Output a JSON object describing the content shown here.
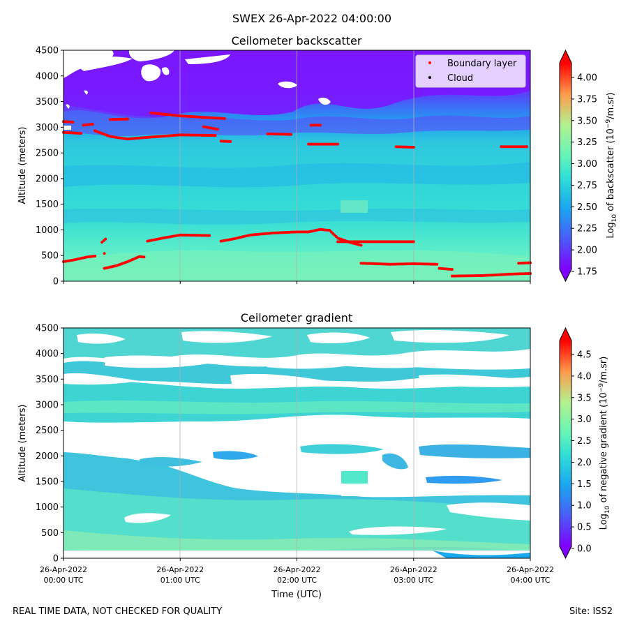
{
  "suptitle": "SWEX 26-Apr-2022 04:00:00",
  "footer_left": "REAL TIME DATA, NOT CHECKED FOR QUALITY",
  "footer_right": "Site: ISS2",
  "xlabel": "Time (UTC)",
  "x_ticks": [
    {
      "date": "26-Apr-2022",
      "time": "00:00 UTC"
    },
    {
      "date": "26-Apr-2022",
      "time": "01:00 UTC"
    },
    {
      "date": "26-Apr-2022",
      "time": "02:00 UTC"
    },
    {
      "date": "26-Apr-2022",
      "time": "03:00 UTC"
    },
    {
      "date": "26-Apr-2022",
      "time": "04:00 UTC"
    }
  ],
  "y_ticks": [
    "0",
    "500",
    "1000",
    "1500",
    "2000",
    "2500",
    "3000",
    "3500",
    "4000",
    "4500"
  ],
  "top": {
    "title": "Ceilometer backscatter",
    "ylabel": "Altitude (meters)",
    "cbar_label": "Log10 of backscatter (10⁻⁹/m.sr)",
    "cbar_ticks": [
      "1.75",
      "2.00",
      "2.25",
      "2.50",
      "2.75",
      "3.00",
      "3.25",
      "3.50",
      "3.75",
      "4.00"
    ],
    "legend": [
      {
        "label": "Boundary layer",
        "color": "#ff0000"
      },
      {
        "label": "Cloud",
        "color": "#000000"
      }
    ]
  },
  "bottom": {
    "title": "Ceilometer gradient",
    "ylabel": "Altitude (meters)",
    "cbar_label": "Log10 of negative gradient (10⁻⁹/m.sr)",
    "cbar_ticks": [
      "0.0",
      "0.5",
      "1.0",
      "1.5",
      "2.0",
      "2.5",
      "3.0",
      "3.5",
      "4.0",
      "4.5"
    ]
  },
  "chart_data": [
    {
      "type": "heatmap",
      "title": "Ceilometer backscatter",
      "xlabel": "Time (UTC)",
      "ylabel": "Altitude (meters)",
      "xlim_hours": [
        0,
        4
      ],
      "ylim": [
        0,
        4500
      ],
      "colorbar_range": [
        1.75,
        4.2
      ],
      "colormap": "rainbow",
      "series": [
        {
          "name": "Boundary layer",
          "type": "scatter",
          "color": "#ff0000",
          "segments": [
            [
              [
                0.0,
                380
              ],
              [
                0.1,
                420
              ],
              [
                0.2,
                470
              ],
              [
                0.27,
                490
              ]
            ],
            [
              [
                0.33,
                760
              ],
              [
                0.36,
                820
              ]
            ],
            [
              [
                0.35,
                540
              ]
            ],
            [
              [
                0.35,
                250
              ],
              [
                0.45,
                300
              ],
              [
                0.55,
                380
              ],
              [
                0.65,
                480
              ],
              [
                0.69,
                470
              ]
            ],
            [
              [
                0.72,
                780
              ],
              [
                0.85,
                840
              ],
              [
                1.0,
                900
              ],
              [
                1.25,
                890
              ]
            ],
            [
              [
                1.35,
                780
              ],
              [
                1.45,
                820
              ],
              [
                1.6,
                900
              ],
              [
                1.8,
                940
              ],
              [
                2.0,
                960
              ],
              [
                2.1,
                960
              ],
              [
                2.2,
                1010
              ],
              [
                2.28,
                990
              ],
              [
                2.35,
                840
              ],
              [
                2.45,
                760
              ],
              [
                2.55,
                700
              ]
            ],
            [
              [
                2.35,
                770
              ],
              [
                2.7,
                770
              ],
              [
                3.0,
                770
              ]
            ],
            [
              [
                2.55,
                350
              ],
              [
                2.8,
                330
              ],
              [
                3.0,
                340
              ],
              [
                3.2,
                330
              ]
            ],
            [
              [
                3.22,
                250
              ],
              [
                3.33,
                230
              ]
            ],
            [
              [
                3.33,
                100
              ],
              [
                3.6,
                110
              ],
              [
                3.85,
                140
              ],
              [
                4.0,
                150
              ]
            ],
            [
              [
                3.9,
                350
              ],
              [
                4.0,
                360
              ]
            ],
            [
              [
                0.0,
                2900
              ],
              [
                0.15,
                2880
              ]
            ],
            [
              [
                0.17,
                3040
              ],
              [
                0.25,
                3060
              ]
            ],
            [
              [
                0.0,
                3110
              ],
              [
                0.08,
                3100
              ]
            ],
            [
              [
                0.27,
                2930
              ],
              [
                0.4,
                2820
              ],
              [
                0.55,
                2770
              ],
              [
                0.7,
                2800
              ],
              [
                1.0,
                2850
              ],
              [
                1.3,
                2840
              ]
            ],
            [
              [
                0.4,
                3150
              ],
              [
                0.55,
                3160
              ]
            ],
            [
              [
                0.75,
                3280
              ],
              [
                1.0,
                3220
              ],
              [
                1.3,
                3180
              ],
              [
                1.38,
                3170
              ]
            ],
            [
              [
                1.2,
                3010
              ],
              [
                1.32,
                2960
              ]
            ],
            [
              [
                1.35,
                2730
              ],
              [
                1.43,
                2720
              ]
            ],
            [
              [
                1.75,
                2870
              ],
              [
                1.95,
                2860
              ]
            ],
            [
              [
                2.12,
                3040
              ],
              [
                2.2,
                3040
              ]
            ],
            [
              [
                2.1,
                2670
              ],
              [
                2.35,
                2670
              ]
            ],
            [
              [
                2.85,
                2620
              ],
              [
                3.0,
                2610
              ]
            ],
            [
              [
                3.75,
                2620
              ],
              [
                3.97,
                2620
              ]
            ]
          ]
        },
        {
          "name": "Cloud",
          "type": "scatter",
          "color": "#000000",
          "points": []
        }
      ]
    },
    {
      "type": "heatmap",
      "title": "Ceilometer gradient",
      "xlabel": "Time (UTC)",
      "ylabel": "Altitude (meters)",
      "xlim_hours": [
        0,
        4
      ],
      "ylim": [
        0,
        4500
      ],
      "colorbar_range": [
        -0.1,
        4.9
      ],
      "colormap": "rainbow"
    }
  ]
}
